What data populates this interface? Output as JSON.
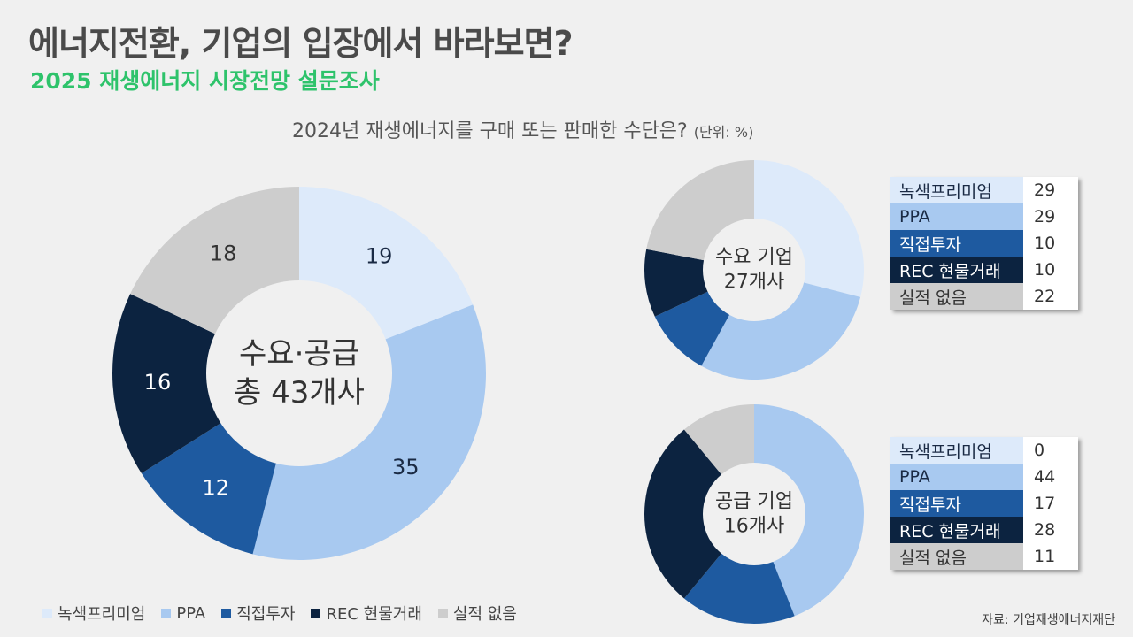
{
  "header": {
    "title": "에너지전환, 기업의 입장에서 바라보면?",
    "subtitle": "2025 재생에너지 시장전망 설문조사"
  },
  "question": {
    "text": "2024년 재생에너지를 구매 또는 판매한 수단은?",
    "unit": "(단위: %)"
  },
  "categories": [
    "녹색프리미엄",
    "PPA",
    "직접투자",
    "REC 현물거래",
    "실적 없음"
  ],
  "colors": [
    "#ddeafa",
    "#a8c9f0",
    "#1e5aa0",
    "#0c2340",
    "#cdcdcd"
  ],
  "label_colors": [
    "#1a2a44",
    "#1a2a44",
    "#ffffff",
    "#ffffff",
    "#333333"
  ],
  "chart_data": [
    {
      "type": "pie",
      "center_label": [
        "수요·공급",
        "총 43개사"
      ],
      "categories": [
        "녹색프리미엄",
        "PPA",
        "직접투자",
        "REC 현물거래",
        "실적 없음"
      ],
      "values": [
        19,
        35,
        12,
        16,
        18
      ]
    },
    {
      "type": "pie",
      "center_label": [
        "수요 기업",
        "27개사"
      ],
      "categories": [
        "녹색프리미엄",
        "PPA",
        "직접투자",
        "REC 현물거래",
        "실적 없음"
      ],
      "values": [
        29,
        29,
        10,
        10,
        22
      ]
    },
    {
      "type": "pie",
      "center_label": [
        "공급 기업",
        "16개사"
      ],
      "categories": [
        "녹색프리미엄",
        "PPA",
        "직접투자",
        "REC 현물거래",
        "실적 없음"
      ],
      "values": [
        0,
        44,
        17,
        28,
        11
      ]
    }
  ],
  "tables": [
    {
      "rows": [
        {
          "label": "녹색프리미엄",
          "value": "29"
        },
        {
          "label": "PPA",
          "value": "29"
        },
        {
          "label": "직접투자",
          "value": "10"
        },
        {
          "label": "REC 현물거래",
          "value": "10"
        },
        {
          "label": "실적 없음",
          "value": "22"
        }
      ]
    },
    {
      "rows": [
        {
          "label": "녹색프리미엄",
          "value": "0"
        },
        {
          "label": "PPA",
          "value": "44"
        },
        {
          "label": "직접투자",
          "value": "17"
        },
        {
          "label": "REC 현물거래",
          "value": "28"
        },
        {
          "label": "실적 없음",
          "value": "11"
        }
      ]
    }
  ],
  "legend": [
    "녹색프리미엄",
    "PPA",
    "직접투자",
    "REC 현물거래",
    "실적 없음"
  ],
  "source": "자료: 기업재생에너지재단"
}
